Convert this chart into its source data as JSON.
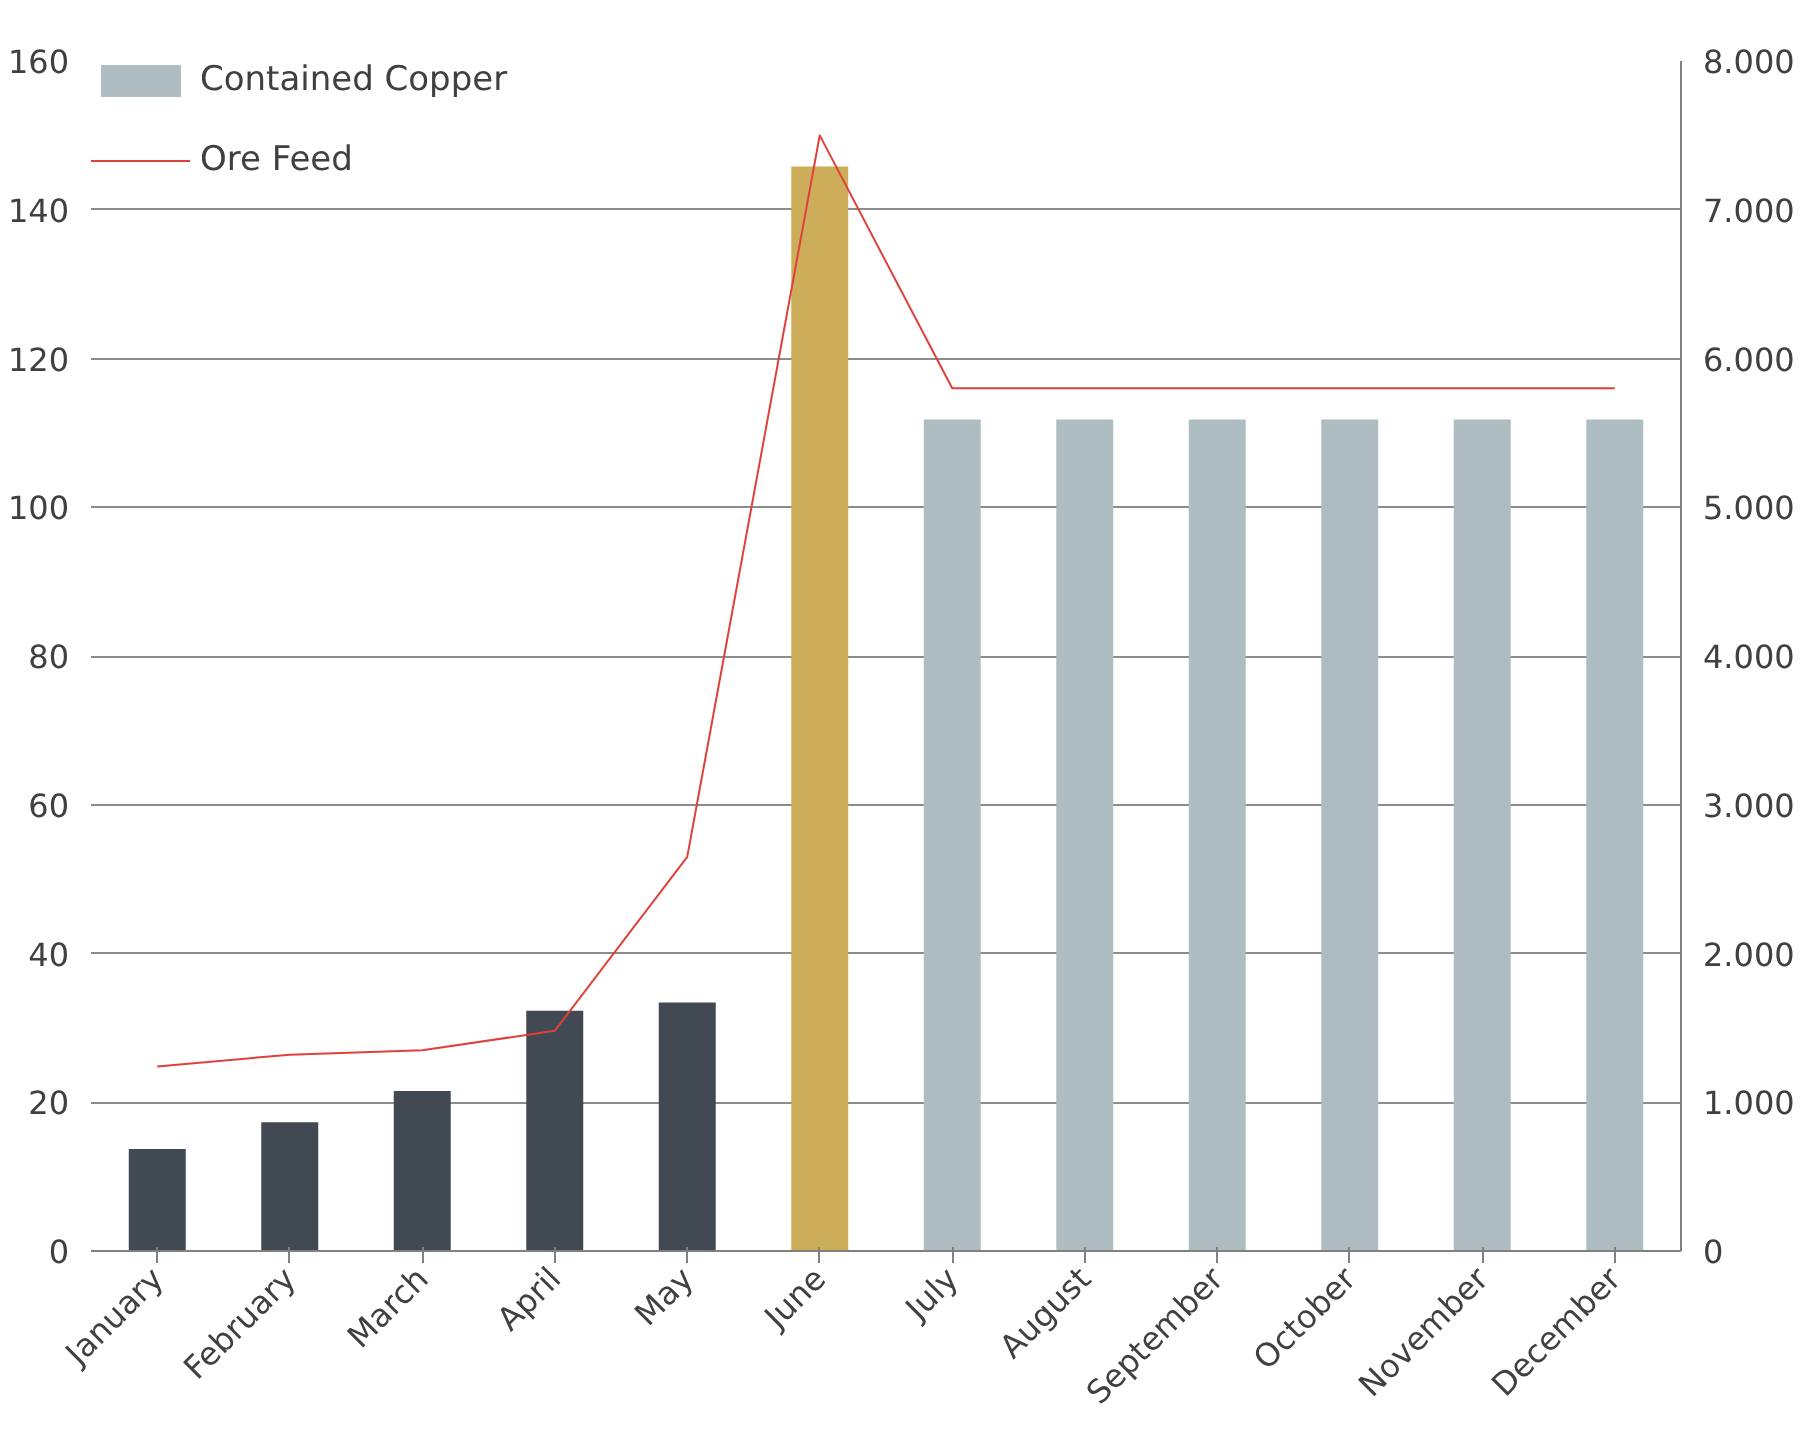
{
  "chart_data": {
    "type": "bar",
    "categories": [
      "January",
      "February",
      "March",
      "April",
      "May",
      "June",
      "July",
      "August",
      "September",
      "October",
      "November",
      "December"
    ],
    "series": [
      {
        "name": "Contained Copper",
        "color": "#adbdc2",
        "colors": [
          "#414a52",
          "#414a52",
          "#414a52",
          "#414a52",
          "#414a52",
          "#ccad5a",
          "#adbdc2",
          "#adbdc2",
          "#adbdc2",
          "#adbdc2",
          "#adbdc2",
          "#adbdc2"
        ],
        "values": [
          13.7,
          17.3,
          21.5,
          32.3,
          33.4,
          145.8,
          111.8,
          111.8,
          111.8,
          111.8,
          111.8,
          111.8
        ]
      },
      {
        "name": "Ore Feed",
        "type": "line",
        "axis": "y2",
        "color": "#e0403a",
        "values": [
          1240,
          1320,
          1350,
          1480,
          2650,
          7500,
          5800,
          5800,
          5800,
          5800,
          5800,
          5800
        ]
      }
    ],
    "ylim": [
      0,
      160
    ],
    "yticks": [
      0,
      20,
      40,
      60,
      80,
      100,
      120,
      140,
      160
    ],
    "y2lim": [
      0,
      8000
    ],
    "y2ticks": [
      0,
      {
        "value": 1000,
        "label": "1.000"
      },
      {
        "value": 2000,
        "label": "2.000"
      },
      {
        "value": 3000,
        "label": "3.000"
      },
      {
        "value": 4000,
        "label": "4.000"
      },
      {
        "value": 5000,
        "label": "5.000"
      },
      {
        "value": 6000,
        "label": "6.000"
      },
      {
        "value": 7000,
        "label": "7.000"
      },
      {
        "value": 8000,
        "label": "8.000"
      }
    ],
    "grid": "y",
    "legend": "top left"
  }
}
